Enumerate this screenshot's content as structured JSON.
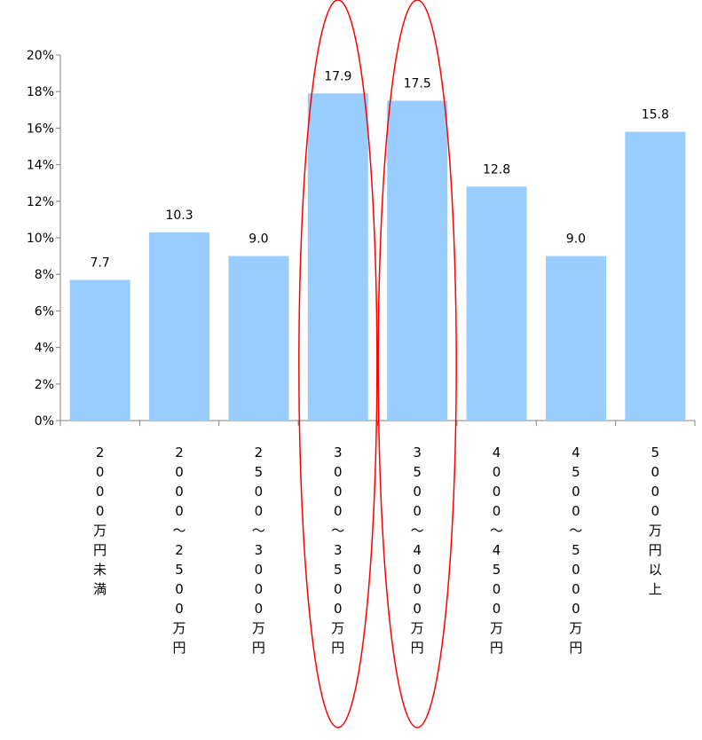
{
  "chart_data": {
    "type": "bar",
    "categories": [
      "2000万円未満",
      "2000～2500万円",
      "2500～3000万円",
      "3000～3500万円",
      "3500～4000万円",
      "4000～4500万円",
      "4500～5000万円",
      "5000万円以上"
    ],
    "values": [
      7.7,
      10.3,
      9.0,
      17.9,
      17.5,
      12.8,
      9.0,
      15.8
    ],
    "data_labels": [
      "7.7",
      "10.3",
      "9.0",
      "17.9",
      "17.5",
      "12.8",
      "9.0",
      "15.8"
    ],
    "y_ticks": [
      "0%",
      "2%",
      "4%",
      "6%",
      "8%",
      "10%",
      "12%",
      "14%",
      "16%",
      "18%",
      "20%"
    ],
    "ylim": [
      0,
      20
    ],
    "highlighted_categories": [
      3,
      4
    ],
    "colors": {
      "bar": "#99ccff",
      "axis": "#808080",
      "highlight": "#ff0000"
    },
    "grid": false,
    "title": "",
    "xlabel": "",
    "ylabel": ""
  }
}
